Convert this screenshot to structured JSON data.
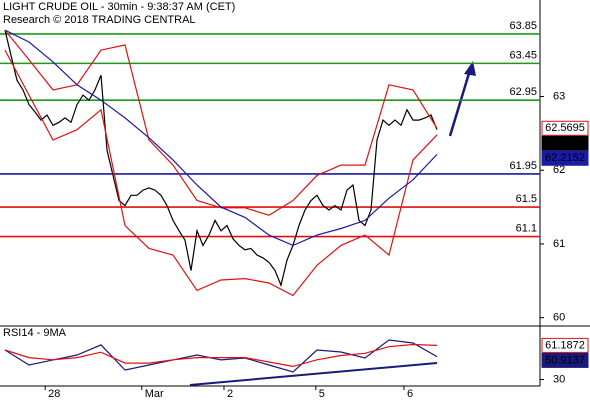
{
  "chart_data": [
    {
      "type": "line",
      "title": "LIGHT CRUDE OIL - 30min - 9:38:37 AM (CET)",
      "subtitle": "Research © 2018 TRADING CENTRAL",
      "xlim": [
        -0.83,
        89.17
      ],
      "ylim": [
        59.9,
        64.31
      ],
      "yticks": [
        60,
        61,
        62,
        63
      ],
      "levels": [
        {
          "value": 63.85,
          "color": "#1a9a1a"
        },
        {
          "value": 63.45,
          "color": "#1a9a1a"
        },
        {
          "value": 62.95,
          "color": "#1a9a1a"
        },
        {
          "value": 61.95,
          "color": "#1a1aa8"
        },
        {
          "value": 61.5,
          "color": "#e01010"
        },
        {
          "value": 61.1,
          "color": "#e01010"
        }
      ],
      "series": [
        {
          "name": "Price",
          "color": "#000000",
          "box": "filled",
          "values": [
            63.9,
            63.56,
            63.22,
            63.09,
            62.89,
            62.79,
            62.68,
            62.75,
            62.61,
            62.65,
            62.71,
            62.65,
            62.89,
            63.02,
            62.95,
            63.09,
            63.29,
            62.27,
            61.93,
            61.59,
            61.52,
            61.66,
            61.66,
            61.73,
            61.76,
            61.73,
            61.66,
            61.52,
            61.32,
            61.18,
            61.05,
            60.64,
            61.18,
            60.98,
            61.12,
            61.32,
            61.18,
            61.25,
            61.07,
            60.98,
            60.92,
            60.94,
            60.85,
            60.81,
            60.75,
            60.64,
            60.44,
            60.78,
            60.98,
            61.25,
            61.46,
            61.59,
            61.66,
            61.52,
            61.46,
            61.52,
            61.46,
            61.73,
            61.8,
            61.32,
            61.25,
            61.46,
            62.41,
            62.68,
            62.61,
            62.68,
            62.61,
            62.82,
            62.68,
            62.68,
            62.71,
            62.75,
            62.55
          ]
        },
        {
          "name": "Upper band",
          "color": "#e01010",
          "box": "outline",
          "x": [
            0,
            4,
            8,
            12,
            16,
            20,
            24,
            28,
            32,
            36,
            40,
            44,
            48,
            52,
            56,
            60,
            64,
            68,
            72
          ],
          "values": [
            63.9,
            63.5,
            63.09,
            63.16,
            63.63,
            63.7,
            62.41,
            62.07,
            61.59,
            61.49,
            61.49,
            61.39,
            61.59,
            61.93,
            62.07,
            62.07,
            63.16,
            63.09,
            62.5695
          ]
        },
        {
          "name": "Lower band",
          "color": "#e01010",
          "x": [
            0,
            4,
            8,
            12,
            16,
            20,
            24,
            28,
            32,
            36,
            40,
            44,
            48,
            52,
            56,
            60,
            64,
            68,
            72
          ],
          "values": [
            63.63,
            63.02,
            62.41,
            62.55,
            62.82,
            61.25,
            60.94,
            60.85,
            60.37,
            60.51,
            60.53,
            60.47,
            60.3,
            60.71,
            60.98,
            61.12,
            60.85,
            62.14,
            62.48
          ]
        },
        {
          "name": "Moving average",
          "color": "#1a1aa8",
          "box": "filled",
          "x": [
            0,
            4,
            8,
            12,
            16,
            20,
            24,
            28,
            32,
            36,
            40,
            44,
            48,
            52,
            56,
            60,
            64,
            68,
            72
          ],
          "values": [
            63.9,
            63.74,
            63.47,
            63.16,
            62.95,
            62.71,
            62.44,
            62.14,
            61.8,
            61.5,
            61.36,
            61.12,
            60.98,
            61.12,
            61.21,
            61.32,
            61.62,
            61.87,
            62.2152
          ]
        }
      ]
    },
    {
      "type": "line",
      "title": "RSI14 - 9MA",
      "xlim": [
        -0.83,
        89.17
      ],
      "ylim": [
        25,
        78
      ],
      "yticks": [
        30
      ],
      "xticks": [
        {
          "value": 6.7,
          "label": "28"
        },
        {
          "value": 22.8,
          "label": "Mar"
        },
        {
          "value": 36.5,
          "label": "2"
        },
        {
          "value": 51.8,
          "label": "5"
        },
        {
          "value": 66.5,
          "label": "6"
        }
      ],
      "series": [
        {
          "name": "RSI14",
          "color": "#1a1a7a",
          "box": "filled",
          "x": [
            0,
            4,
            8,
            12,
            16,
            20,
            24,
            28,
            32,
            36,
            40,
            44,
            48,
            52,
            56,
            60,
            64,
            68,
            72
          ],
          "values": [
            57.0,
            43.3,
            47.9,
            52.4,
            61.6,
            38.7,
            43.3,
            47.9,
            52.4,
            47.9,
            49.7,
            43.3,
            36.9,
            57.0,
            55.2,
            49.7,
            66.1,
            63.4,
            50.9137
          ]
        },
        {
          "name": "9MA",
          "color": "#e01010",
          "box": "outline",
          "x": [
            0,
            4,
            8,
            12,
            16,
            20,
            24,
            28,
            32,
            36,
            40,
            44,
            48,
            52,
            56,
            60,
            64,
            68,
            72
          ],
          "values": [
            57,
            50,
            48,
            50,
            55,
            45,
            45,
            48,
            50,
            50,
            50,
            46,
            42,
            48,
            52,
            54,
            60,
            62,
            61.1872
          ]
        }
      ]
    }
  ]
}
